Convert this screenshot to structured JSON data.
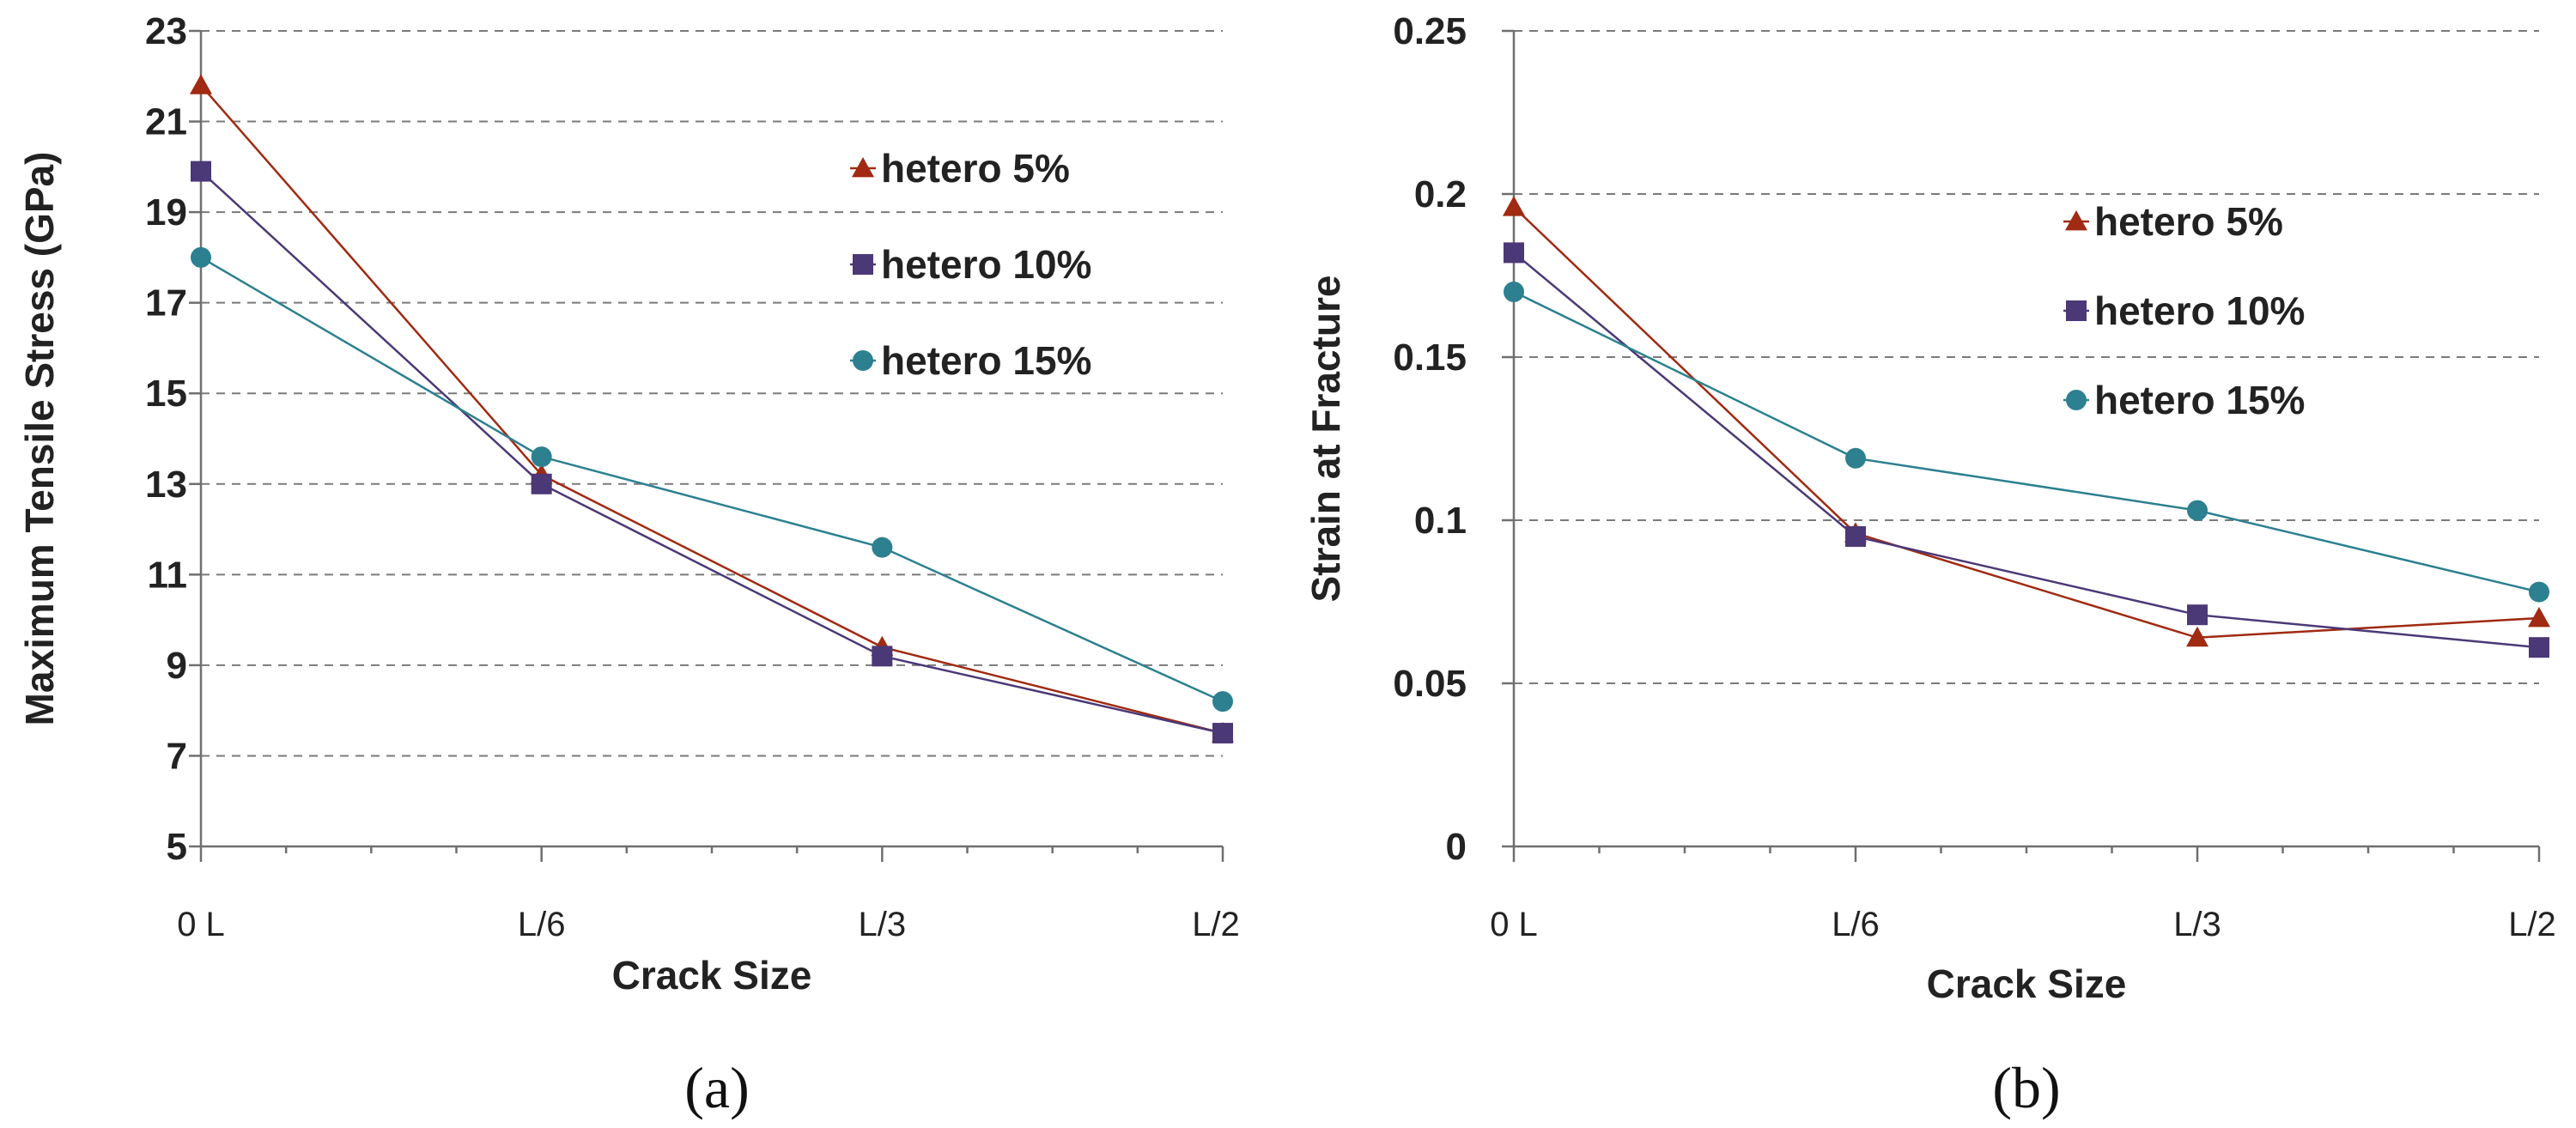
{
  "colors": {
    "hetero5": "#a02a12",
    "hetero10": "#4b3876",
    "hetero15": "#2c8090"
  },
  "chart_data": [
    {
      "type": "line",
      "panel_label": "(a)",
      "xlabel": "Crack Size",
      "ylabel": "Maximum Tensile Stress (GPa)",
      "categories": [
        "0 L",
        "L/6",
        "L/3",
        "L/2"
      ],
      "ylim": [
        5,
        23
      ],
      "yticks": [
        "5",
        "7",
        "9",
        "11",
        "13",
        "15",
        "17",
        "19",
        "21",
        "23"
      ],
      "grid": true,
      "legend_position": "top-right",
      "series": [
        {
          "name": "hetero 5%",
          "marker": "triangle",
          "values": [
            21.8,
            13.2,
            9.4,
            7.5
          ]
        },
        {
          "name": "hetero 10%",
          "marker": "square",
          "values": [
            19.9,
            13.0,
            9.2,
            7.5
          ]
        },
        {
          "name": "hetero 15%",
          "marker": "circle",
          "values": [
            18.0,
            13.6,
            11.6,
            8.2
          ]
        }
      ]
    },
    {
      "type": "line",
      "panel_label": "(b)",
      "xlabel": "Crack Size",
      "ylabel": "Strain at Fracture",
      "categories": [
        "0 L",
        "L/6",
        "L/3",
        "L/2"
      ],
      "ylim": [
        0,
        0.25
      ],
      "yticks": [
        "0",
        "0.05",
        "0.1",
        "0.15",
        "0.2",
        "0.25"
      ],
      "grid": true,
      "legend_position": "top-right",
      "series": [
        {
          "name": "hetero 5%",
          "marker": "triangle",
          "values": [
            0.196,
            0.096,
            0.064,
            0.07
          ]
        },
        {
          "name": "hetero 10%",
          "marker": "square",
          "values": [
            0.182,
            0.095,
            0.071,
            0.061
          ]
        },
        {
          "name": "hetero 15%",
          "marker": "circle",
          "values": [
            0.17,
            0.119,
            0.103,
            0.078
          ]
        }
      ]
    }
  ]
}
